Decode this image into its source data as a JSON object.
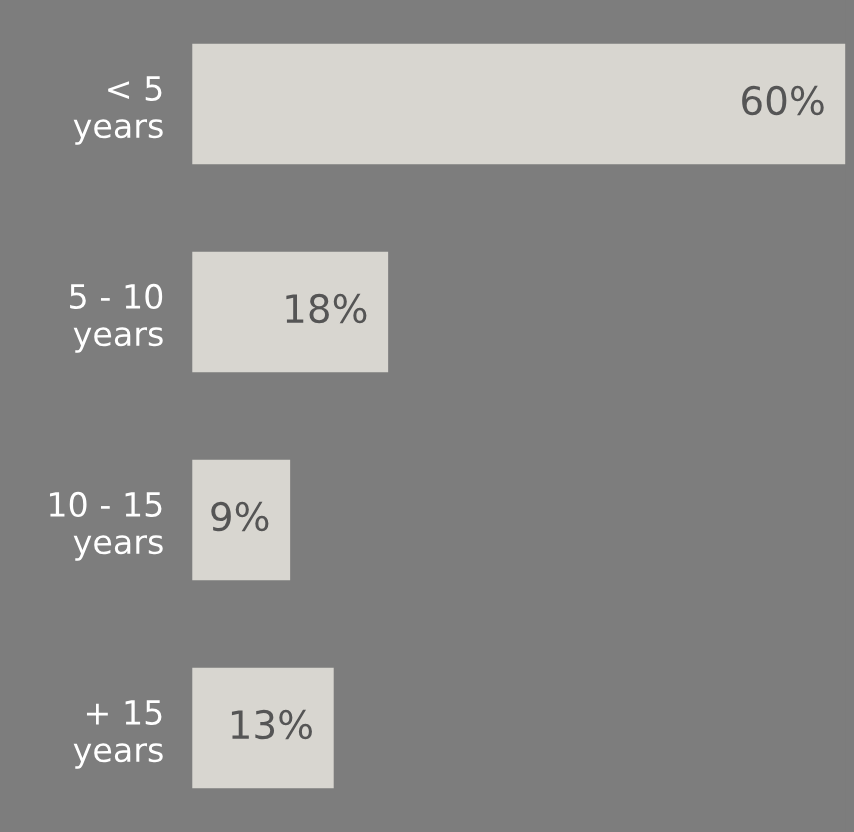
{
  "chart_data": {
    "type": "bar",
    "orientation": "horizontal",
    "categories": [
      "< 5\nyears",
      "5 - 10\nyears",
      "10 - 15\nyears",
      "+ 15\nyears"
    ],
    "values": [
      60,
      18,
      9,
      13
    ],
    "value_labels": [
      "60%",
      "18%",
      "9%",
      "13%"
    ],
    "color": "#d8d6d0",
    "grid": false,
    "legend": false
  }
}
